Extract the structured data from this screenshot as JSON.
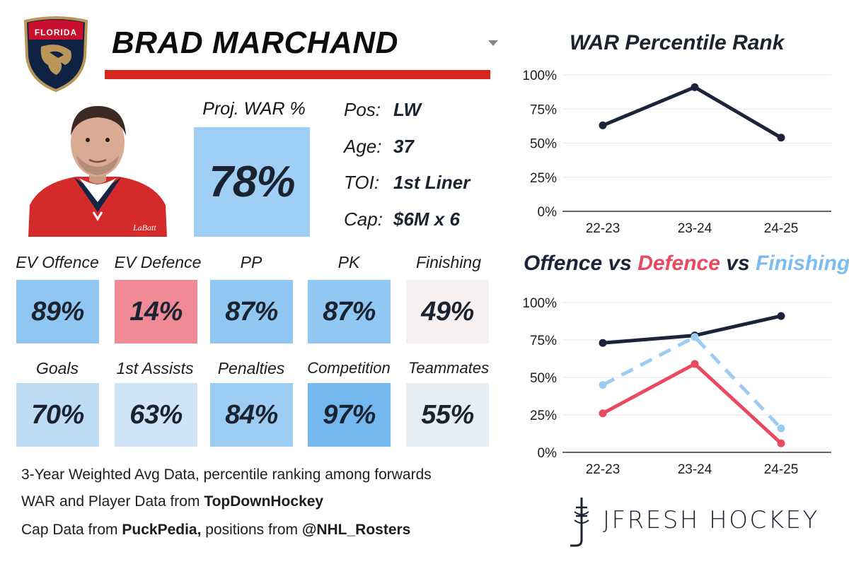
{
  "header": {
    "team_logo_text": "FLORIDA",
    "player_name": "BRAD MARCHAND"
  },
  "projection": {
    "label": "Proj. WAR %",
    "value": "78%"
  },
  "info": [
    {
      "key": "Pos:",
      "value": "LW"
    },
    {
      "key": "Age:",
      "value": "37"
    },
    {
      "key": "TOI:",
      "value": "1st Liner"
    },
    {
      "key": "Cap:",
      "value": "$6M x 6"
    }
  ],
  "stats_row1": [
    {
      "label": "EV Offence",
      "value": "89%",
      "color": "#8fc6f2"
    },
    {
      "label": "EV Defence",
      "value": "14%",
      "color": "#ef8a96"
    },
    {
      "label": "PP",
      "value": "87%",
      "color": "#90c7f3"
    },
    {
      "label": "PK",
      "value": "87%",
      "color": "#90c7f3"
    },
    {
      "label": "Finishing",
      "value": "49%",
      "color": "#f6f0f1"
    }
  ],
  "stats_row2": [
    {
      "label": "Goals",
      "value": "70%",
      "color": "#bcdcf5"
    },
    {
      "label": "1st Assists",
      "value": "63%",
      "color": "#cfe5f7"
    },
    {
      "label": "Penalties",
      "value": "84%",
      "color": "#9dcdf3"
    },
    {
      "label": "Competition",
      "value": "97%",
      "color": "#74b8f0"
    },
    {
      "label": "Teammates",
      "value": "55%",
      "color": "#e6eef5"
    }
  ],
  "colors": {
    "proj_box": "#9fcff4",
    "offence": "#1b2438",
    "defence": "#e84a5f",
    "finishing": "#9dcbf1",
    "accent_red": "#d7281f"
  },
  "footer": {
    "line1": "3-Year Weighted Avg Data, percentile ranking among forwards",
    "line2_prefix": "WAR and Player Data from ",
    "line2_bold": "TopDownHockey",
    "line3_prefix": "Cap Data from ",
    "line3_bold": "PuckPedia,",
    "line3_mid": " positions from ",
    "line3_bold2": "@NHL_Rosters"
  },
  "branding": {
    "name": "JFRESH HOCKEY"
  },
  "chart_data": [
    {
      "type": "line",
      "title": "WAR Percentile Rank",
      "categories": [
        "22-23",
        "23-24",
        "24-25"
      ],
      "yticks": [
        "0%",
        "25%",
        "50%",
        "75%",
        "100%"
      ],
      "ylim": [
        0,
        100
      ],
      "grid": true,
      "series": [
        {
          "values": [
            63,
            91,
            54
          ],
          "color": "#1b2438",
          "dashed": false
        }
      ]
    },
    {
      "type": "line",
      "title_parts": [
        {
          "text": "Offence",
          "color": "#1b2438"
        },
        {
          "text": " vs ",
          "color": "#1b2438"
        },
        {
          "text": "Defence",
          "color": "#e84a5f"
        },
        {
          "text": " vs ",
          "color": "#1b2438"
        },
        {
          "text": "Finishing",
          "color": "#7cbcf0"
        }
      ],
      "categories": [
        "22-23",
        "23-24",
        "24-25"
      ],
      "yticks": [
        "0%",
        "25%",
        "50%",
        "75%",
        "100%"
      ],
      "ylim": [
        0,
        100
      ],
      "grid": true,
      "series": [
        {
          "name": "Offence",
          "values": [
            73,
            78,
            91
          ],
          "color": "#1b2438",
          "dashed": false
        },
        {
          "name": "Defence",
          "values": [
            26,
            59,
            6
          ],
          "color": "#e84a5f",
          "dashed": false
        },
        {
          "name": "Finishing",
          "values": [
            45,
            77,
            16
          ],
          "color": "#9dcbf1",
          "dashed": true
        }
      ]
    }
  ]
}
